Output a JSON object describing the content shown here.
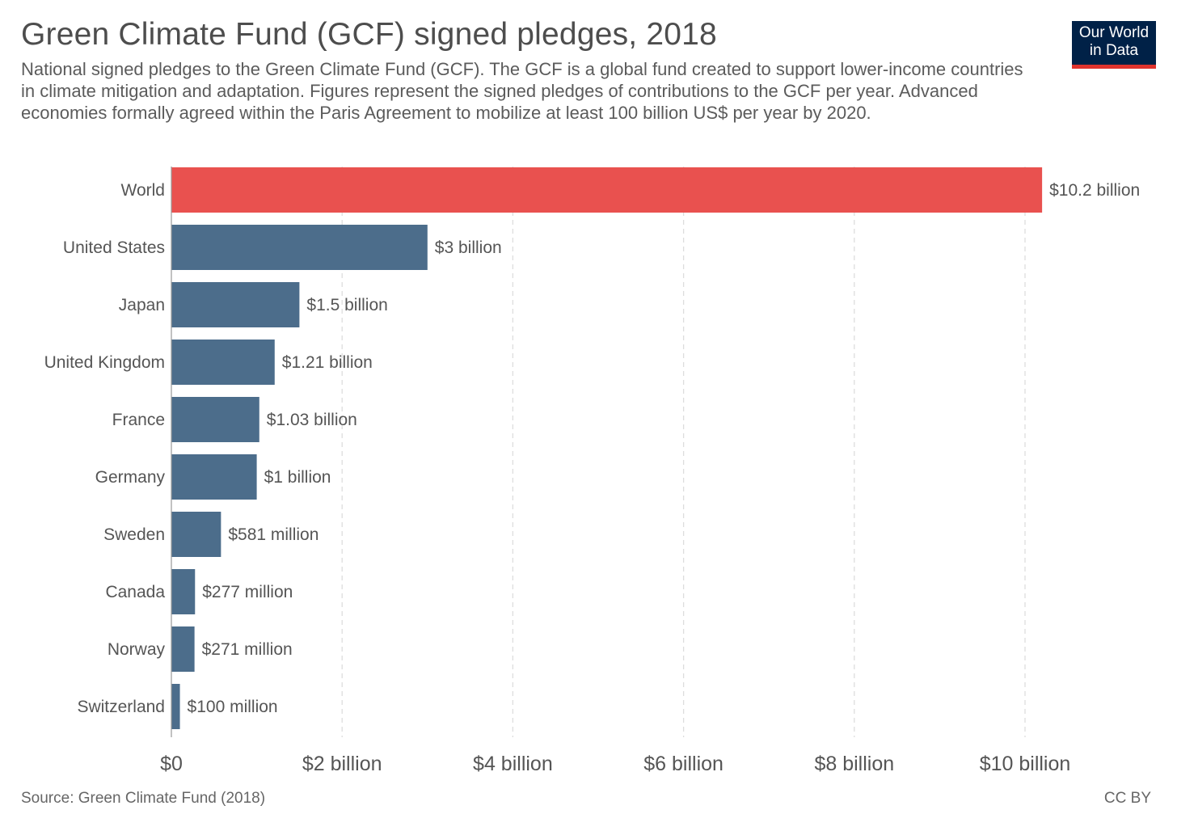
{
  "header": {
    "title": "Green Climate Fund (GCF) signed pledges, 2018",
    "subtitle": "National signed pledges to the Green Climate Fund (GCF). The GCF is a global fund created to support lower-income countries in climate mitigation and adaptation. Figures represent the signed pledges of contributions to the GCF per year. Advanced economies formally agreed within the Paris Agreement to mobilize at least 100 billion US$ per year by 2020."
  },
  "logo": {
    "line1": "Our World",
    "line2": "in Data"
  },
  "footer": {
    "source": "Source: Green Climate Fund (2018)",
    "license": "CC BY"
  },
  "chart_data": {
    "type": "bar",
    "orientation": "horizontal",
    "title": "Green Climate Fund (GCF) signed pledges, 2018",
    "categories": [
      "World",
      "United States",
      "Japan",
      "United Kingdom",
      "France",
      "Germany",
      "Sweden",
      "Canada",
      "Norway",
      "Switzerland"
    ],
    "values": [
      10.2,
      3.0,
      1.5,
      1.21,
      1.03,
      1.0,
      0.581,
      0.277,
      0.271,
      0.1
    ],
    "value_unit": "billion US$",
    "value_labels": [
      "$10.2 billion",
      "$3 billion",
      "$1.5 billion",
      "$1.21 billion",
      "$1.03 billion",
      "$1 billion",
      "$581 million",
      "$277 million",
      "$271 million",
      "$100 million"
    ],
    "bar_colors": [
      "#e9514f",
      "#4c6d8b",
      "#4c6d8b",
      "#4c6d8b",
      "#4c6d8b",
      "#4c6d8b",
      "#4c6d8b",
      "#4c6d8b",
      "#4c6d8b",
      "#4c6d8b"
    ],
    "xlim": [
      0,
      11
    ],
    "xticks": [
      0,
      2,
      4,
      6,
      8,
      10
    ],
    "xtick_labels": [
      "$0",
      "$2 billion",
      "$4 billion",
      "$6 billion",
      "$8 billion",
      "$10 billion"
    ],
    "xlabel": "",
    "ylabel": "",
    "grid": "vertical dashed",
    "legend": "none"
  }
}
